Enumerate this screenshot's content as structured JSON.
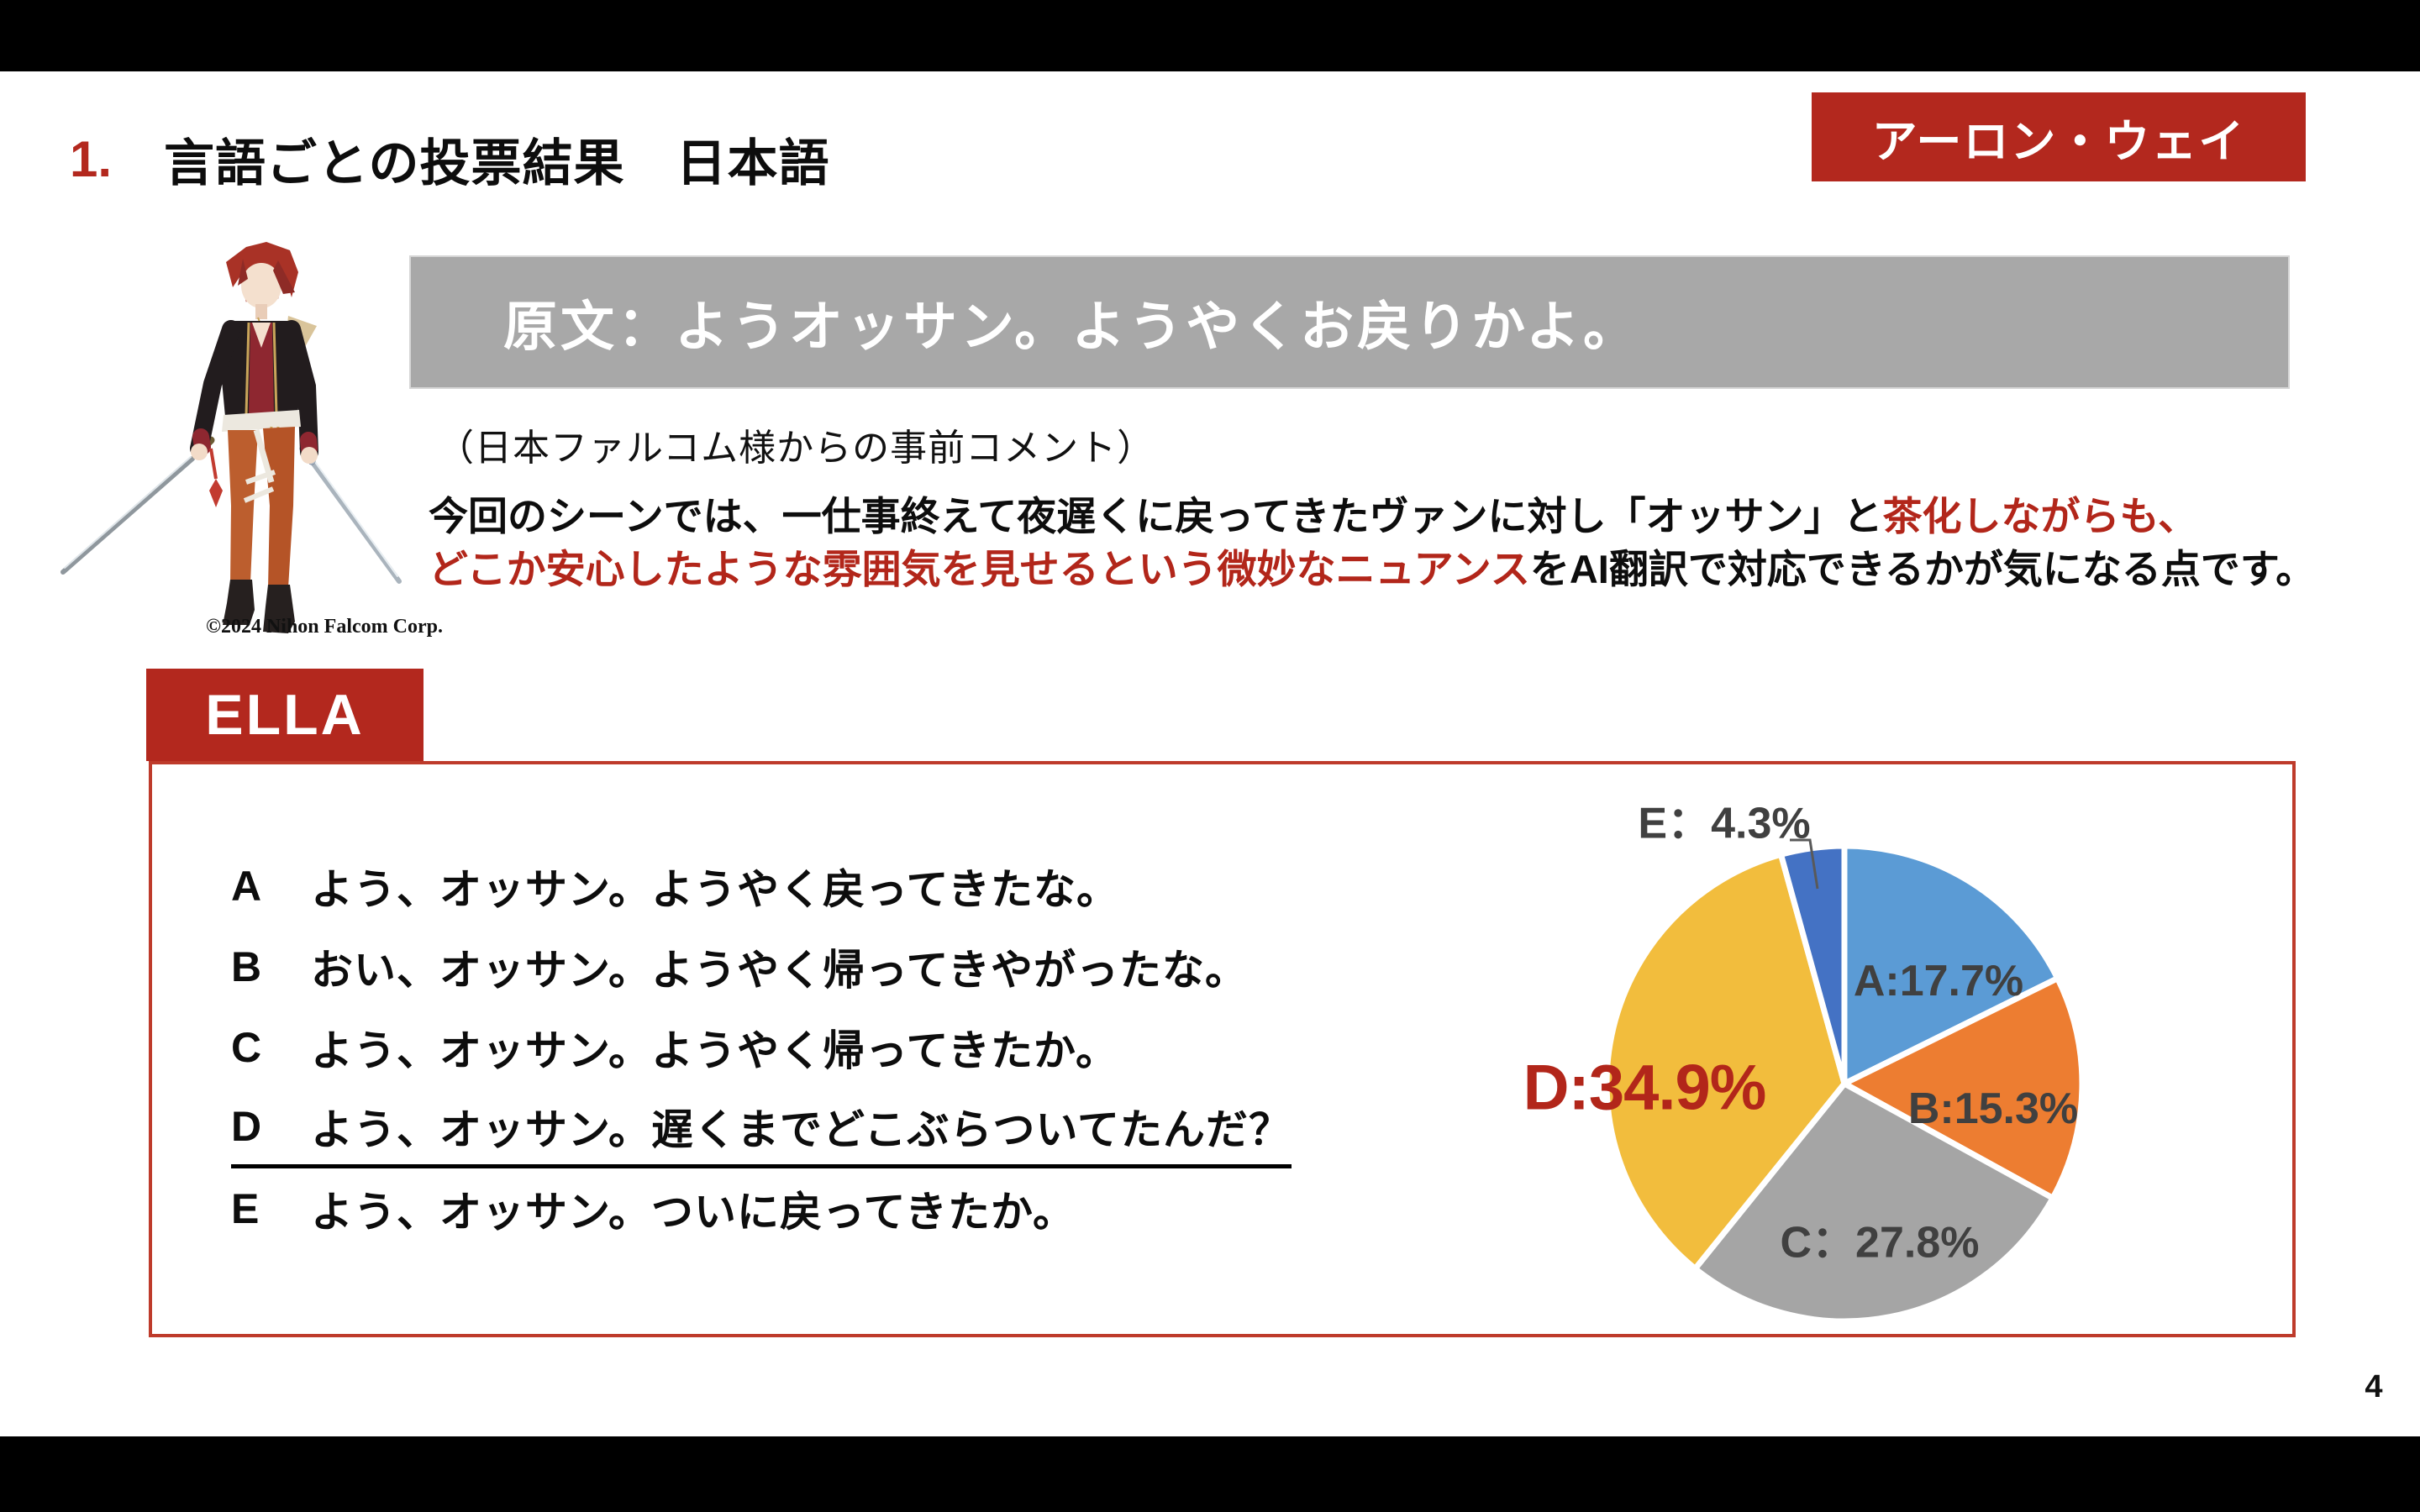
{
  "header": {
    "number": "1.",
    "title": "言語ごとの投票結果　日本語",
    "badge": "アーロン・ウェイ"
  },
  "source_banner": {
    "text": "原文：ようオッサン。ようやくお戻りかよ。"
  },
  "character": {
    "copyright": "©2024 Nihon Falcom Corp."
  },
  "comment": {
    "intro": "（日本ファルコム様からの事前コメント）",
    "line1_black": "今回のシーンでは、一仕事終えて夜遅くに戻ってきたヴァンに対し「オッサン」と",
    "line1_red": "茶化しながらも、",
    "line2_red": "どこか安心したような雰囲気を見せるという微妙なニュアンス",
    "line2_black": "をAI翻訳で対応できるかが気になる点です。"
  },
  "model_label": "ELLA",
  "options": [
    {
      "letter": "A",
      "text": "よう、オッサン。ようやく戻ってきたな。",
      "underlined": false
    },
    {
      "letter": "B",
      "text": "おい、オッサン。ようやく帰ってきやがったな。",
      "underlined": false
    },
    {
      "letter": "C",
      "text": "よう、オッサン。ようやく帰ってきたか。",
      "underlined": false
    },
    {
      "letter": "D",
      "text": "よう、オッサン。遅くまでどこぶらついてたんだ？",
      "underlined": true
    },
    {
      "letter": "E",
      "text": "よう、オッサン。ついに戻ってきたか。",
      "underlined": false
    }
  ],
  "chart_data": {
    "type": "pie",
    "title": "",
    "categories": [
      "A",
      "B",
      "C",
      "D",
      "E"
    ],
    "values": [
      17.7,
      15.3,
      27.8,
      34.9,
      4.3
    ],
    "unit": "%",
    "start_angle": "12 o'clock, clockwise",
    "legend": "none",
    "colors": [
      "#5B9BD5",
      "#ED7D31",
      "#A5A5A5",
      "#F2BD3D",
      "#4472C4"
    ],
    "labels": [
      {
        "text": "A:17.7%",
        "placement": "inside",
        "emphasis": false,
        "leader_line": false
      },
      {
        "text": "B:15.3%",
        "placement": "inside",
        "emphasis": false,
        "leader_line": false
      },
      {
        "text": "C：27.8%",
        "placement": "inside",
        "emphasis": false,
        "leader_line": false
      },
      {
        "text": "D:34.9%",
        "placement": "outside-left",
        "emphasis": true,
        "leader_line": false
      },
      {
        "text": "E：4.3%",
        "placement": "outside-top",
        "emphasis": false,
        "leader_line": true
      }
    ],
    "label_color_default": "#404040",
    "label_color_emphasis": "#B2261A"
  },
  "footer": {
    "page_number": "4"
  },
  "colors": {
    "accent_red": "#B3281E",
    "box_border_red": "#BE3B2B",
    "banner_gray": "#A8A8A8",
    "text_red": "#B2261A",
    "label_gray": "#404040"
  }
}
